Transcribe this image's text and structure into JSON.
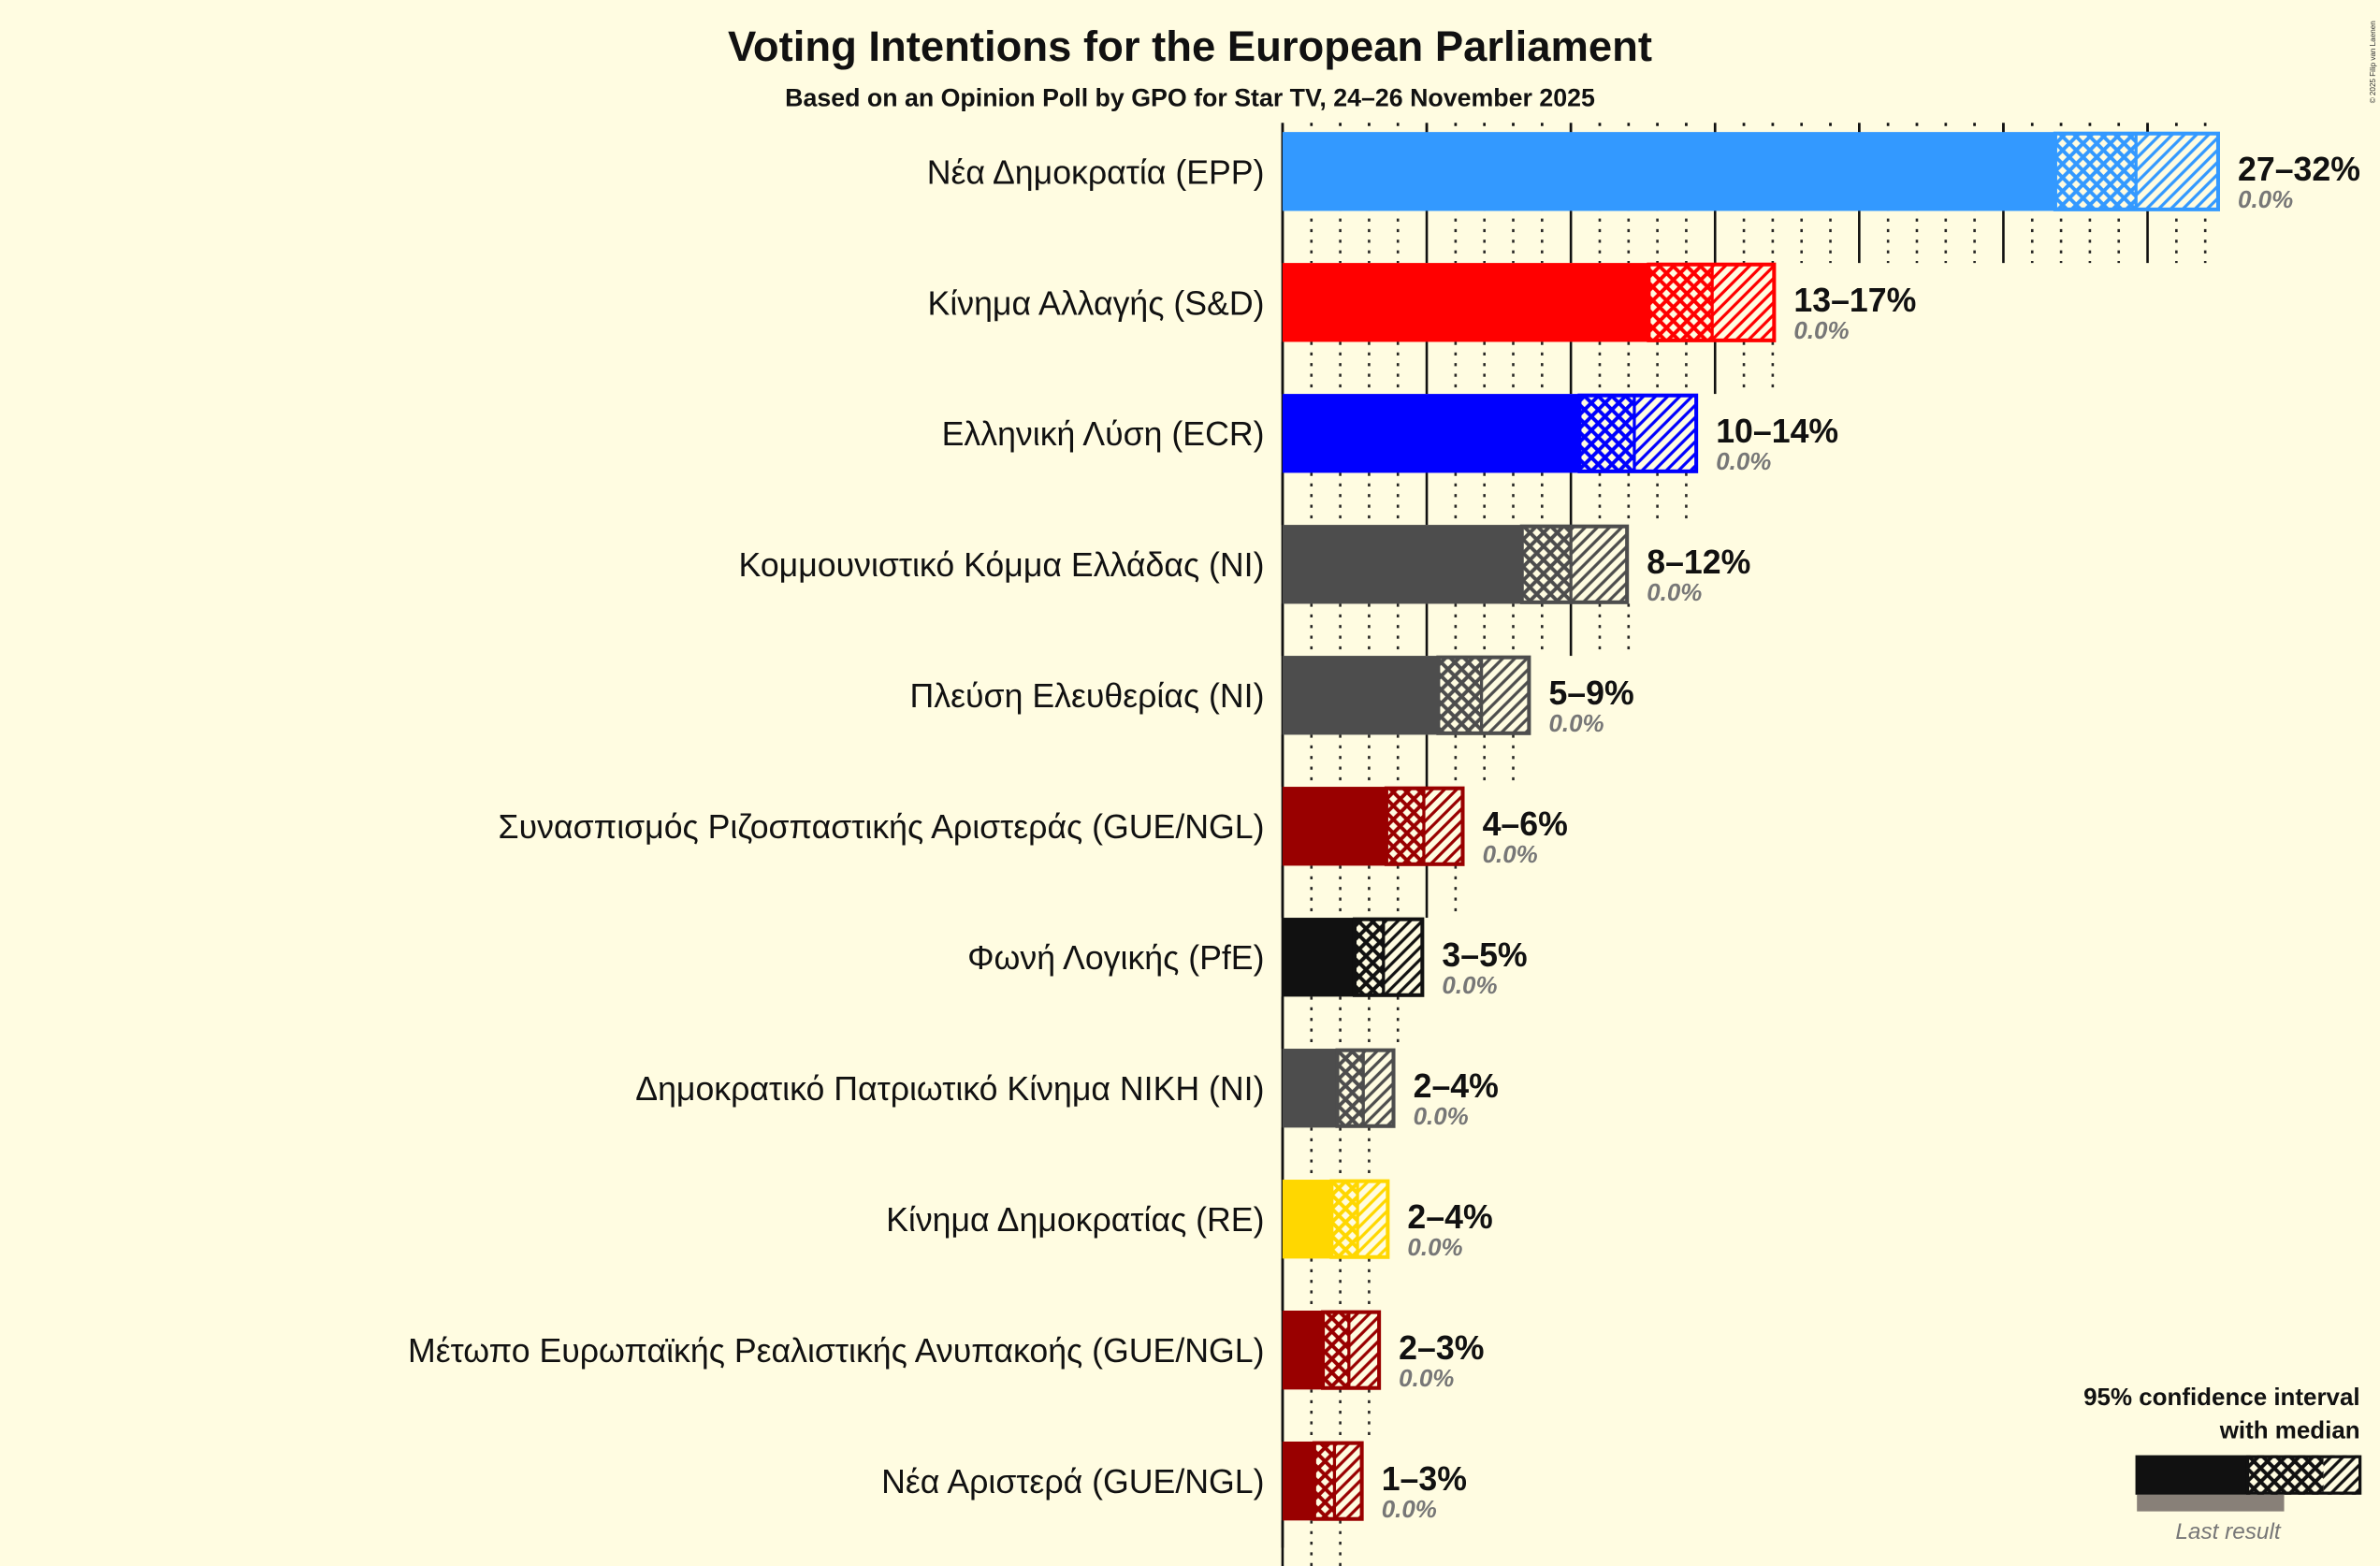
{
  "chart_data": {
    "type": "bar",
    "title": "Voting Intentions for the European Parliament",
    "subtitle": "Based on an Opinion Poll by GPO for Star TV, 24–26 November 2025",
    "copyright": "© 2025 Filip van Laenen",
    "xlim": [
      0,
      35
    ],
    "unit": "%",
    "parties": [
      {
        "name": "Νέα Δημοκρατία (EPP)",
        "color": "#3399FF",
        "low": 26.8,
        "median": 29.6,
        "high": 32.5,
        "range_label": "27–32%",
        "last_result": "0.0%"
      },
      {
        "name": "Κίνημα Αλλαγής (S&D)",
        "color": "#FF0000",
        "low": 12.7,
        "median": 14.9,
        "high": 17.1,
        "range_label": "13–17%",
        "last_result": "0.0%"
      },
      {
        "name": "Ελληνική Λύση (ECR)",
        "color": "#0000FF",
        "low": 10.3,
        "median": 12.2,
        "high": 14.4,
        "range_label": "10–14%",
        "last_result": "0.0%"
      },
      {
        "name": "Κομμουνιστικό Κόμμα Ελλάδας (NI)",
        "color": "#4D4D4D",
        "low": 8.3,
        "median": 10.0,
        "high": 12.0,
        "range_label": "8–12%",
        "last_result": "0.0%"
      },
      {
        "name": "Πλεύση Ελευθερίας (NI)",
        "color": "#4D4D4D",
        "low": 5.4,
        "median": 6.9,
        "high": 8.6,
        "range_label": "5–9%",
        "last_result": "0.0%"
      },
      {
        "name": "Συνασπισμός Ριζοσπαστικής Αριστεράς (GUE/NGL)",
        "color": "#990000",
        "low": 3.6,
        "median": 4.9,
        "high": 6.3,
        "range_label": "4–6%",
        "last_result": "0.0%"
      },
      {
        "name": "Φωνή Λογικής (PfE)",
        "color": "#111111",
        "low": 2.5,
        "median": 3.5,
        "high": 4.9,
        "range_label": "3–5%",
        "last_result": "0.0%"
      },
      {
        "name": "Δημοκρατικό Πατριωτικό Κίνημα ΝΙΚΗ (NI)",
        "color": "#4D4D4D",
        "low": 1.9,
        "median": 2.8,
        "high": 3.9,
        "range_label": "2–4%",
        "last_result": "0.0%"
      },
      {
        "name": "Κίνημα Δημοκρατίας (RE)",
        "color": "#FFD700",
        "low": 1.7,
        "median": 2.6,
        "high": 3.7,
        "range_label": "2–4%",
        "last_result": "0.0%"
      },
      {
        "name": "Μέτωπο Ευρωπαϊκής Ρεαλιστικής Ανυπακοής (GUE/NGL)",
        "color": "#990000",
        "low": 1.4,
        "median": 2.3,
        "high": 3.4,
        "range_label": "2–3%",
        "last_result": "0.0%"
      },
      {
        "name": "Νέα Αριστερά (GUE/NGL)",
        "color": "#990000",
        "low": 1.1,
        "median": 1.8,
        "high": 2.8,
        "range_label": "1–3%",
        "last_result": "0.0%"
      }
    ],
    "legend": {
      "line1": "95% confidence interval",
      "line2": "with median",
      "last_result": "Last result",
      "position": "bottom-right"
    }
  }
}
